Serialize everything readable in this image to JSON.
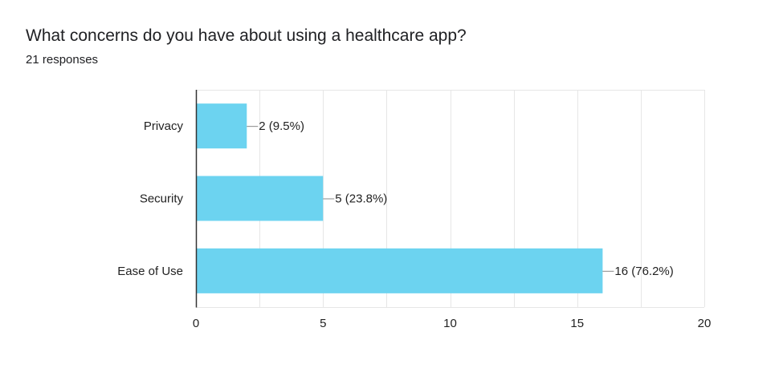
{
  "header": {
    "title": "What concerns do you have about using a healthcare app?",
    "responses": "21 responses"
  },
  "colors": {
    "bar": "#6cd3f0",
    "grid": "#e6e6e6",
    "axis": "#333333",
    "text": "#222222"
  },
  "chart_data": {
    "type": "bar",
    "orientation": "horizontal",
    "categories": [
      "Privacy",
      "Security",
      "Ease of Use"
    ],
    "values": [
      2,
      5,
      16
    ],
    "data_labels": [
      "2 (9.5%)",
      "5 (23.8%)",
      "16 (76.2%)"
    ],
    "xlim": [
      0,
      20
    ],
    "xticks": [
      0,
      5,
      10,
      15,
      20
    ],
    "minor_grid_step": 2.5,
    "grid": true,
    "legend": false
  }
}
